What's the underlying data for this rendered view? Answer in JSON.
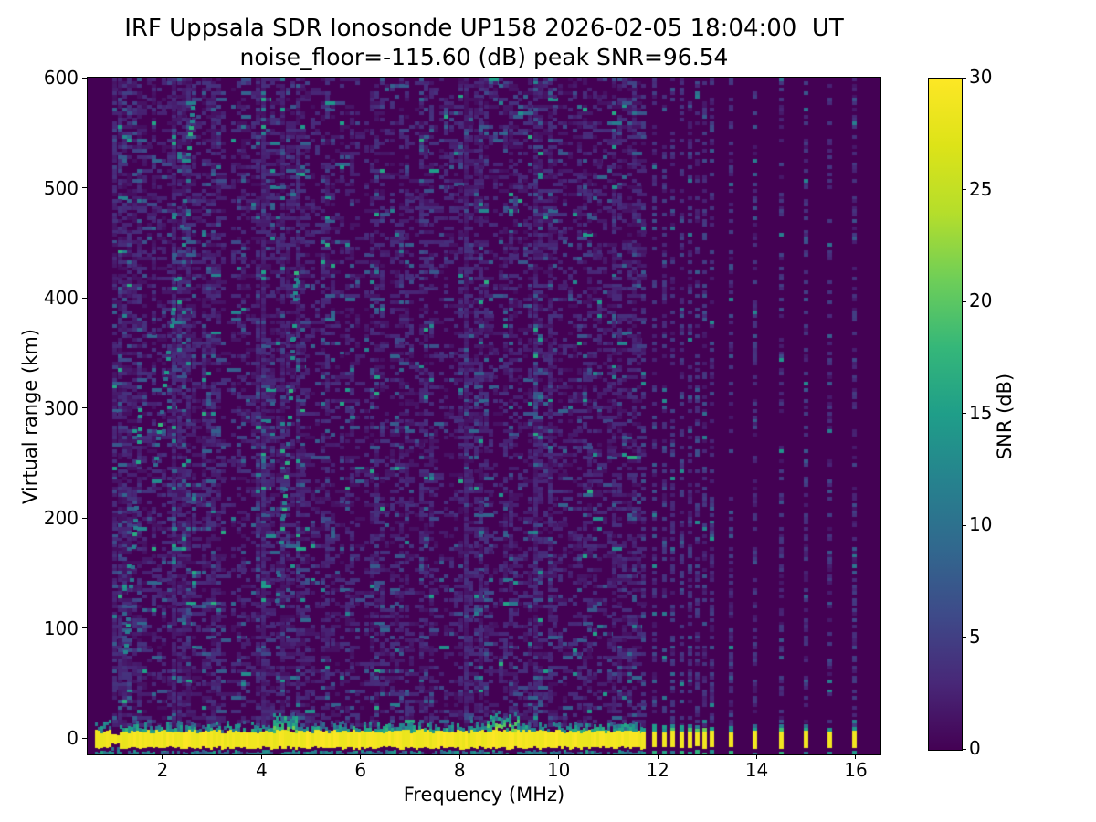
{
  "figure": {
    "background": "#ffffff"
  },
  "chart_data": {
    "type": "heatmap",
    "title_line1": "IRF Uppsala SDR Ionosonde UP158 2026-02-05 18:04:00  UT",
    "title_line2": "noise_floor=-115.60 (dB) peak SNR=96.54",
    "xlabel": "Frequency (MHz)",
    "ylabel": "Virtual range (km)",
    "noise_floor_db": -115.6,
    "peak_snr_db": 96.54,
    "x_range_mhz": [
      0.49,
      16.48
    ],
    "y_range_km": [
      -14,
      600
    ],
    "x_ticks": [
      2,
      4,
      6,
      8,
      10,
      12,
      14,
      16
    ],
    "y_ticks": [
      0,
      100,
      200,
      300,
      400,
      500,
      600
    ],
    "grid": false,
    "colorbar": {
      "label": "SNR (dB)",
      "range_db": [
        0,
        30
      ],
      "ticks": [
        0,
        5,
        10,
        15,
        20,
        25,
        30
      ],
      "colormap": "viridis"
    },
    "colormap_stops": [
      [
        68,
        1,
        84
      ],
      [
        72,
        40,
        120
      ],
      [
        62,
        74,
        137
      ],
      [
        49,
        104,
        142
      ],
      [
        38,
        130,
        142
      ],
      [
        31,
        158,
        137
      ],
      [
        53,
        183,
        121
      ],
      [
        110,
        206,
        88
      ],
      [
        181,
        222,
        43
      ],
      [
        221,
        227,
        24
      ],
      [
        253,
        231,
        37
      ]
    ],
    "background_color": "#440154",
    "features": {
      "noise_seed": 20260205,
      "no_data_below_mhz": 1.0,
      "ground_return_band": {
        "center_km": 0,
        "snr_db": 30,
        "freq_start_mhz": 0.63,
        "freq_end_mhz": 11.68,
        "notch_mhz": [
          0.95,
          1.1
        ],
        "enhanced_fringe_mhz": [
          [
            4.2,
            4.7
          ],
          [
            8.5,
            9.2
          ]
        ]
      },
      "discrete_sounding_mhz": [
        11.72,
        11.93,
        12.13,
        12.3,
        12.48,
        12.65,
        12.8,
        12.95,
        13.1,
        13.48,
        13.97,
        14.49,
        14.99,
        15.47,
        15.97
      ],
      "interference_columns": [
        {
          "mhz": 1.08,
          "s": 1.2
        },
        {
          "mhz": 1.3,
          "s": 0.7
        },
        {
          "mhz": 1.5,
          "s": 0.8
        },
        {
          "mhz": 2.28,
          "s": 1.5
        },
        {
          "mhz": 2.5,
          "s": 1.0
        },
        {
          "mhz": 3.05,
          "s": 0.9
        },
        {
          "mhz": 3.6,
          "s": 0.6
        },
        {
          "mhz": 4.0,
          "s": 1.3
        },
        {
          "mhz": 4.45,
          "s": 1.0
        },
        {
          "mhz": 4.75,
          "s": 1.2
        },
        {
          "mhz": 5.3,
          "s": 0.7
        },
        {
          "mhz": 5.8,
          "s": 0.5
        },
        {
          "mhz": 6.3,
          "s": 0.6
        },
        {
          "mhz": 6.9,
          "s": 0.5
        },
        {
          "mhz": 7.35,
          "s": 0.5
        },
        {
          "mhz": 8.12,
          "s": 1.5
        },
        {
          "mhz": 8.4,
          "s": 0.7
        },
        {
          "mhz": 9.0,
          "s": 0.5
        },
        {
          "mhz": 9.55,
          "s": 1.2
        },
        {
          "mhz": 9.85,
          "s": 0.7
        },
        {
          "mhz": 10.5,
          "s": 0.5
        },
        {
          "mhz": 11.15,
          "s": 0.6
        },
        {
          "mhz": 11.5,
          "s": 0.6
        }
      ],
      "quiet_columns_mhz": [
        3.35,
        6.05
      ],
      "slant_traces": [
        {
          "f0": 1.85,
          "f1": 2.62,
          "km0": 250,
          "km1": 580
        },
        {
          "f0": 4.3,
          "f1": 4.7,
          "km0": 120,
          "km1": 430
        },
        {
          "f0": 1.25,
          "f1": 1.55,
          "km0": 80,
          "km1": 300
        }
      ]
    }
  }
}
